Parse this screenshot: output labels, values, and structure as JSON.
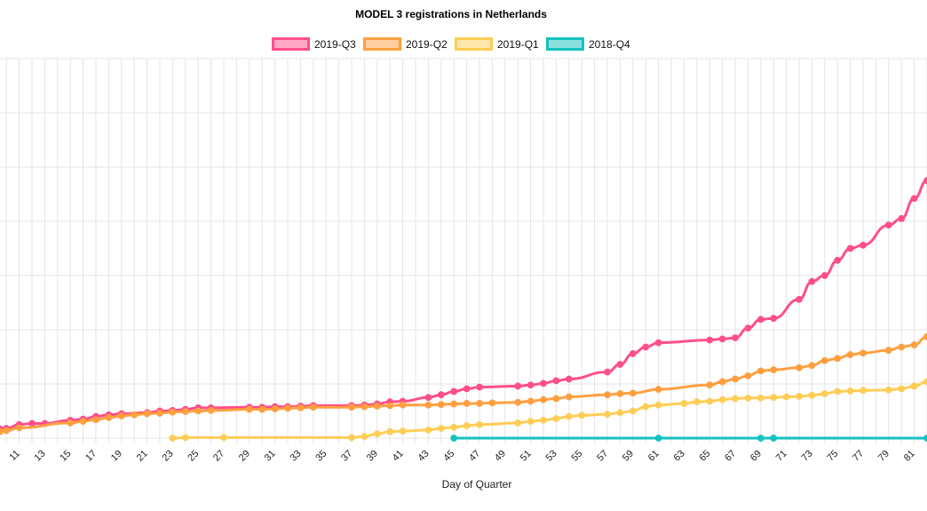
{
  "chart_data": {
    "type": "line",
    "title": "MODEL 3 registrations in Netherlands",
    "xlabel": "Day of Quarter",
    "ylabel": "",
    "x_ticks": [
      11,
      13,
      15,
      17,
      19,
      21,
      23,
      25,
      27,
      29,
      31,
      33,
      35,
      37,
      39,
      41,
      43,
      45,
      47,
      49,
      51,
      53,
      55,
      57,
      59,
      61,
      63,
      65,
      67,
      69,
      71,
      73,
      75,
      77,
      79,
      81
    ],
    "xlim": [
      9.5,
      82
    ],
    "ylim": [
      0,
      700
    ],
    "y_grid_values": [
      0,
      100,
      200,
      300,
      400,
      500,
      600,
      700
    ],
    "grid": true,
    "legend_position": "top-center",
    "series": [
      {
        "name": "2019-Q3",
        "color": "#ff4f8b",
        "x": [
          9.5,
          10,
          11,
          12,
          13,
          15,
          16,
          17,
          18,
          19,
          21,
          22,
          23,
          24,
          25,
          26,
          29,
          30,
          31,
          32,
          33,
          34,
          37,
          38,
          39,
          40,
          41,
          43,
          44,
          45,
          46,
          47,
          50,
          51,
          52,
          53,
          54,
          57,
          58,
          59,
          60,
          61,
          65,
          66,
          67,
          68,
          69,
          70,
          72,
          73,
          74,
          75,
          76,
          77,
          79,
          80,
          81,
          82
        ],
        "y": [
          17,
          18,
          25,
          27,
          27,
          33,
          35,
          40,
          43,
          45,
          47,
          50,
          51,
          53,
          56,
          56,
          57,
          57,
          58,
          58,
          59,
          60,
          60,
          61,
          63,
          67,
          68,
          75,
          80,
          86,
          91,
          94,
          96,
          98,
          101,
          106,
          109,
          122,
          136,
          156,
          168,
          176,
          181,
          183,
          185,
          203,
          219,
          221,
          256,
          289,
          300,
          328,
          350,
          356,
          393,
          405,
          442,
          475
        ]
      },
      {
        "name": "2019-Q2",
        "color": "#ff9f40",
        "x": [
          9.5,
          10,
          11,
          15,
          16,
          17,
          18,
          19,
          20,
          21,
          22,
          23,
          24,
          25,
          26,
          29,
          30,
          31,
          32,
          33,
          34,
          37,
          38,
          39,
          40,
          41,
          43,
          44,
          45,
          46,
          47,
          48,
          50,
          51,
          52,
          53,
          54,
          57,
          58,
          59,
          61,
          65,
          66,
          67,
          68,
          69,
          70,
          72,
          73,
          74,
          75,
          76,
          77,
          79,
          80,
          81,
          82
        ],
        "y": [
          12,
          14,
          19,
          28,
          31,
          34,
          38,
          41,
          43,
          45,
          46,
          48,
          49,
          50,
          51,
          53,
          53,
          54,
          55,
          56,
          57,
          57,
          58,
          59,
          60,
          61,
          61,
          62,
          63,
          64,
          64,
          65,
          66,
          68,
          71,
          73,
          76,
          80,
          82,
          83,
          90,
          98,
          104,
          109,
          115,
          124,
          126,
          130,
          134,
          143,
          147,
          154,
          157,
          162,
          168,
          172,
          187
        ]
      },
      {
        "name": "2019-Q1",
        "color": "#ffcd56",
        "x": [
          23,
          24,
          27,
          37,
          38,
          39,
          40,
          41,
          43,
          44,
          45,
          46,
          47,
          50,
          51,
          52,
          53,
          54,
          55,
          57,
          58,
          59,
          60,
          61,
          63,
          64,
          65,
          66,
          67,
          68,
          69,
          70,
          71,
          72,
          73,
          74,
          75,
          76,
          77,
          79,
          80,
          81,
          82
        ],
        "y": [
          0,
          1,
          1,
          1,
          3,
          8,
          12,
          13,
          15,
          18,
          20,
          23,
          25,
          28,
          31,
          33,
          36,
          40,
          42,
          44,
          47,
          50,
          58,
          61,
          64,
          67,
          68,
          71,
          73,
          74,
          74,
          75,
          76,
          77,
          79,
          82,
          86,
          87,
          88,
          89,
          91,
          96,
          104
        ]
      },
      {
        "name": "2018-Q4",
        "color": "#16c2bf",
        "x": [
          45,
          61,
          69,
          70,
          82
        ],
        "y": [
          0,
          0,
          0,
          0,
          0
        ]
      }
    ]
  }
}
